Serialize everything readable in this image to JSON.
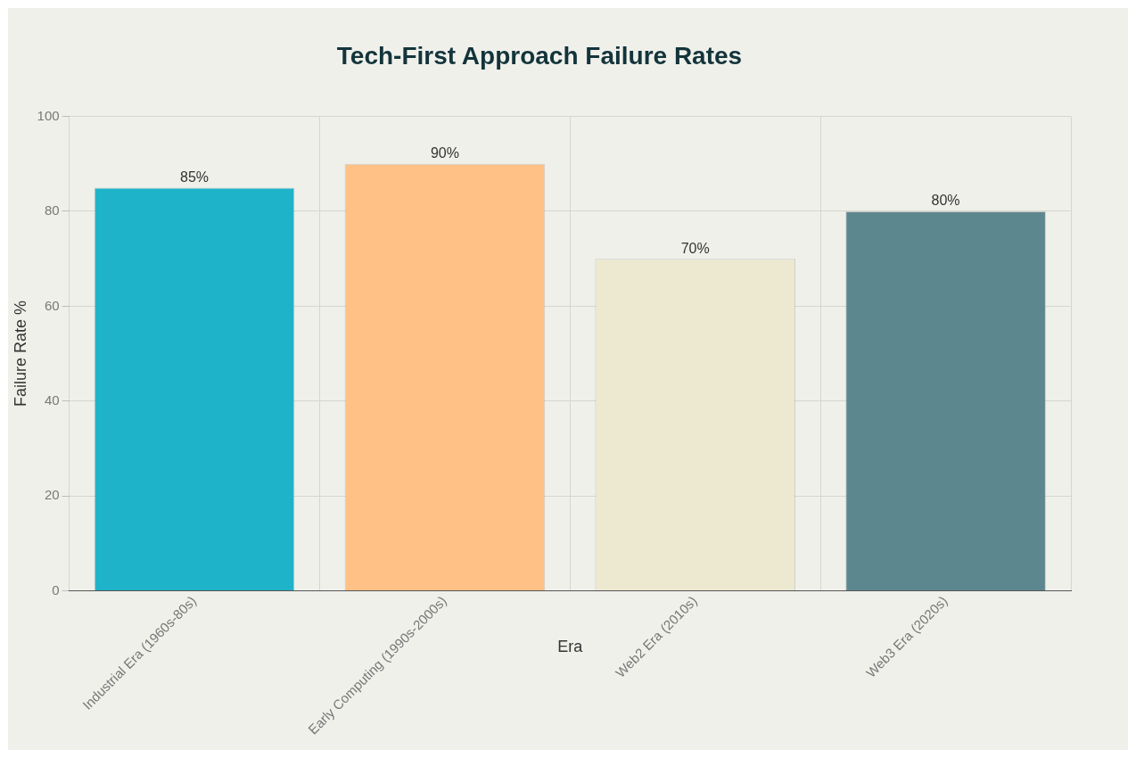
{
  "chart_data": {
    "type": "bar",
    "title": "Tech-First Approach Failure Rates",
    "xlabel": "Era",
    "ylabel": "Failure Rate %",
    "categories": [
      "Industrial Era (1960s-80s)",
      "Early Computing (1990s-2000s)",
      "Web2 Era (2010s)",
      "Web3 Era (2020s)"
    ],
    "values": [
      85,
      90,
      70,
      80
    ],
    "colors": [
      "#1fb3c9",
      "#ffc185",
      "#ece9d0",
      "#5d878f"
    ],
    "value_labels": [
      "85%",
      "90%",
      "70%",
      "80%"
    ],
    "ylim": [
      0,
      100
    ],
    "yticks": [
      0,
      20,
      40,
      60,
      80,
      100
    ],
    "grid": true,
    "legend": false
  }
}
